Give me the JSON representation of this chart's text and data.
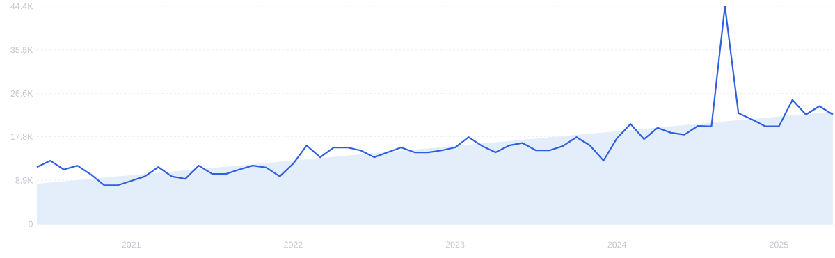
{
  "chart_data": {
    "type": "line",
    "xlim": [
      "2020-06",
      "2025-05"
    ],
    "ylim": [
      0,
      44400
    ],
    "xticks": [
      "2021",
      "2022",
      "2023",
      "2024",
      "2025"
    ],
    "yticks": [
      0,
      {
        "value": 8900,
        "label": "8.9K"
      },
      {
        "value": 17800,
        "label": "17.8K"
      },
      {
        "value": 26600,
        "label": "26.6K"
      },
      {
        "value": 35500,
        "label": "35.5K"
      },
      {
        "value": 44400,
        "label": "44.4K"
      }
    ],
    "grid": "y",
    "series": [
      {
        "type": "area",
        "color": "#e4eefb",
        "x": [
          "2020-06",
          "2025-05"
        ],
        "values": [
          8200,
          22900
        ]
      },
      {
        "color": "#2f5fe0",
        "x": [
          "2020-06",
          "2020-07",
          "2020-08",
          "2020-09",
          "2020-10",
          "2020-11",
          "2020-12",
          "2021-01",
          "2021-02",
          "2021-03",
          "2021-04",
          "2021-05",
          "2021-06",
          "2021-07",
          "2021-08",
          "2021-09",
          "2021-10",
          "2021-11",
          "2021-12",
          "2022-01",
          "2022-02",
          "2022-03",
          "2022-04",
          "2022-05",
          "2022-06",
          "2022-07",
          "2022-08",
          "2022-09",
          "2022-10",
          "2022-11",
          "2022-12",
          "2023-01",
          "2023-02",
          "2023-03",
          "2023-04",
          "2023-05",
          "2023-06",
          "2023-07",
          "2023-08",
          "2023-09",
          "2023-10",
          "2023-11",
          "2023-12",
          "2024-01",
          "2024-02",
          "2024-03",
          "2024-04",
          "2024-05",
          "2024-06",
          "2024-07",
          "2024-08",
          "2024-09",
          "2024-10",
          "2024-11",
          "2024-12",
          "2025-01",
          "2025-02",
          "2025-03",
          "2025-04",
          "2025-05"
        ],
        "values": [
          11600,
          12900,
          11100,
          11900,
          10100,
          7900,
          7900,
          8800,
          9700,
          11600,
          9700,
          9200,
          11900,
          10200,
          10200,
          11100,
          11900,
          11500,
          9700,
          12300,
          16000,
          13600,
          15600,
          15600,
          15000,
          13600,
          14600,
          15600,
          14600,
          14600,
          15000,
          15600,
          17700,
          15900,
          14600,
          16000,
          16500,
          15000,
          15000,
          15900,
          17700,
          16000,
          12900,
          17500,
          20400,
          17300,
          19600,
          18600,
          18200,
          20000,
          19900,
          44400,
          22600,
          21300,
          19900,
          19900,
          25300,
          22300,
          24000,
          22300
        ]
      }
    ]
  }
}
